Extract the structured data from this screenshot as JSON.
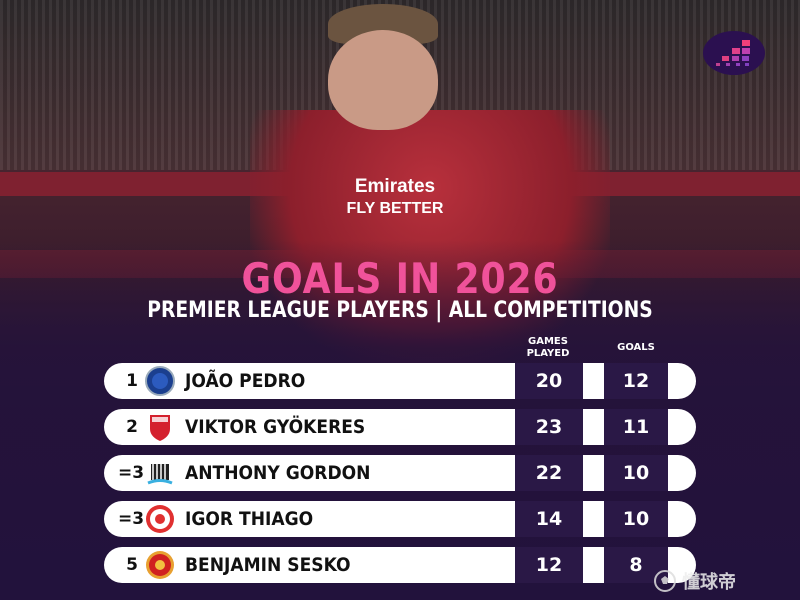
{
  "title": "GOALS IN 2026",
  "subtitle": "PREMIER LEAGUE PLAYERS | ALL COMPETITIONS",
  "sponsor": {
    "line1": "Emirates",
    "line2": "FLY BETTER"
  },
  "columns": {
    "games": "GAMES PLAYED",
    "goals": "GOALS"
  },
  "colors": {
    "title": "#f0529a",
    "cell": "#2a1846",
    "background": "#24143a"
  },
  "rows": [
    {
      "rank": "1",
      "club_icon": "chelsea-crest-icon",
      "name": "JOÃO PEDRO",
      "games": "20",
      "goals": "12"
    },
    {
      "rank": "2",
      "club_icon": "arsenal-crest-icon",
      "name": "VIKTOR GYÖKERES",
      "games": "23",
      "goals": "11"
    },
    {
      "rank": "=3",
      "club_icon": "newcastle-crest-icon",
      "name": "ANTHONY GORDON",
      "games": "22",
      "goals": "10"
    },
    {
      "rank": "=3",
      "club_icon": "brentford-crest-icon",
      "name": "IGOR THIAGO",
      "games": "14",
      "goals": "10"
    },
    {
      "rank": "5",
      "club_icon": "man-utd-crest-icon",
      "name": "BENJAMIN SESKO",
      "games": "12",
      "goals": "8"
    }
  ],
  "watermark": "懂球帝"
}
